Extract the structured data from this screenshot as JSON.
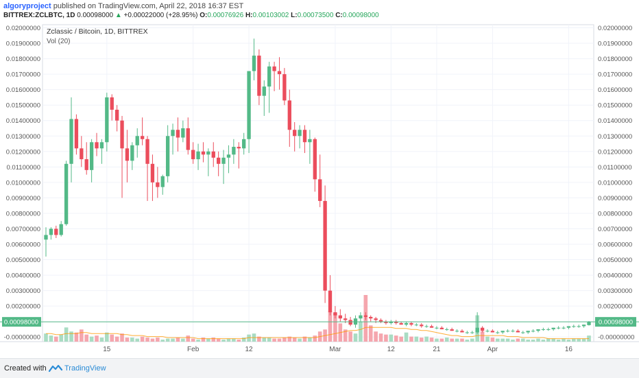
{
  "header": {
    "author": "algoryproject",
    "published_text": "published on TradingView.com, April 22, 2018 16:37 EST",
    "symbol": "BITTREX:ZCLBTC, 1D",
    "last": "0.00098000",
    "change_arrow": "▲",
    "change": "+0.00022000 (+28.95%)",
    "o_label": "O:",
    "o": "0.00076926",
    "h_label": "H:",
    "h": "0.00103002",
    "l_label": "L:",
    "l": "0.00073500",
    "c_label": "C:",
    "c": "0.00098000"
  },
  "legend": {
    "title": "Zclassic / Bitcoin, 1D, BITTREX",
    "vol": "Vol (20)"
  },
  "footer": {
    "created_with": "Created with",
    "brand": "TradingView",
    "logo_icon": "tradingview-logo-icon"
  },
  "colors": {
    "up": "#53b987",
    "down": "#eb4d5c",
    "up_vol": "#a9dcc3",
    "down_vol": "#f5a6ae",
    "ma": "#ff9800",
    "price_line": "#53b987",
    "grid": "#f0f3fa"
  },
  "chart_data": {
    "type": "candlestick",
    "title": "Zclassic / Bitcoin, 1D, BITTREX",
    "ylim": [
      -0.0003,
      0.0202
    ],
    "y_ticks": [
      "0.02000000",
      "0.01900000",
      "0.01800000",
      "0.01700000",
      "0.01600000",
      "0.01500000",
      "0.01400000",
      "0.01300000",
      "0.01200000",
      "0.01100000",
      "0.01000000",
      "0.00900000",
      "0.00800000",
      "0.00700000",
      "0.00600000",
      "0.00500000",
      "0.00400000",
      "0.00300000",
      "0.00200000",
      "0.00100000",
      "-0.00000000"
    ],
    "y_tick_values": [
      0.02,
      0.019,
      0.018,
      0.017,
      0.016,
      0.015,
      0.014,
      0.013,
      0.012,
      0.011,
      0.01,
      0.009,
      0.008,
      0.007,
      0.006,
      0.005,
      0.004,
      0.003,
      0.002,
      0.001,
      0.0
    ],
    "last_price_label": "0.00098000",
    "last_price": 0.00098,
    "x_ticks": [
      {
        "label": "15",
        "index": 12
      },
      {
        "label": "Feb",
        "index": 29
      },
      {
        "label": "12",
        "index": 40
      },
      {
        "label": "Mar",
        "index": 57
      },
      {
        "label": "12",
        "index": 68
      },
      {
        "label": "21",
        "index": 77
      },
      {
        "label": "Apr",
        "index": 88
      },
      {
        "label": "16",
        "index": 103
      }
    ],
    "grid": true,
    "ohlc": [
      [
        0.0063,
        0.0071,
        0.0052,
        0.0066
      ],
      [
        0.0066,
        0.0071,
        0.0063,
        0.007
      ],
      [
        0.007,
        0.0072,
        0.0064,
        0.0066
      ],
      [
        0.0066,
        0.0075,
        0.0065,
        0.0073
      ],
      [
        0.0073,
        0.0114,
        0.0072,
        0.0112
      ],
      [
        0.0112,
        0.0155,
        0.01,
        0.0141
      ],
      [
        0.0141,
        0.0144,
        0.0118,
        0.0122
      ],
      [
        0.0122,
        0.013,
        0.011,
        0.0115
      ],
      [
        0.0115,
        0.0126,
        0.0105,
        0.0108
      ],
      [
        0.0108,
        0.0128,
        0.01,
        0.0126
      ],
      [
        0.0126,
        0.0132,
        0.0117,
        0.0122
      ],
      [
        0.0122,
        0.0128,
        0.0112,
        0.0126
      ],
      [
        0.0126,
        0.0158,
        0.012,
        0.0155
      ],
      [
        0.0155,
        0.0157,
        0.014,
        0.0147
      ],
      [
        0.0147,
        0.015,
        0.0133,
        0.014
      ],
      [
        0.014,
        0.0143,
        0.009,
        0.0122
      ],
      [
        0.0122,
        0.0134,
        0.01,
        0.0114
      ],
      [
        0.0114,
        0.0126,
        0.0108,
        0.0124
      ],
      [
        0.0124,
        0.0135,
        0.0116,
        0.013
      ],
      [
        0.013,
        0.0142,
        0.0124,
        0.0128
      ],
      [
        0.0128,
        0.013,
        0.0088,
        0.0112
      ],
      [
        0.0112,
        0.0118,
        0.0088,
        0.01
      ],
      [
        0.01,
        0.011,
        0.009,
        0.0097
      ],
      [
        0.0097,
        0.0105,
        0.0092,
        0.0104
      ],
      [
        0.0104,
        0.0137,
        0.01,
        0.013
      ],
      [
        0.013,
        0.0138,
        0.0118,
        0.0134
      ],
      [
        0.0134,
        0.0142,
        0.012,
        0.0129
      ],
      [
        0.0129,
        0.014,
        0.0126,
        0.0135
      ],
      [
        0.0135,
        0.0142,
        0.0118,
        0.0121
      ],
      [
        0.0121,
        0.0126,
        0.0112,
        0.0115
      ],
      [
        0.0115,
        0.0125,
        0.0108,
        0.012
      ],
      [
        0.012,
        0.0126,
        0.0113,
        0.0118
      ],
      [
        0.0118,
        0.0122,
        0.0104,
        0.012
      ],
      [
        0.012,
        0.0126,
        0.011,
        0.0116
      ],
      [
        0.0116,
        0.012,
        0.0104,
        0.0112
      ],
      [
        0.0112,
        0.0121,
        0.0099,
        0.0116
      ],
      [
        0.0116,
        0.0124,
        0.0106,
        0.0118
      ],
      [
        0.0118,
        0.0128,
        0.0112,
        0.0123
      ],
      [
        0.0123,
        0.0126,
        0.0109,
        0.0122
      ],
      [
        0.0122,
        0.0132,
        0.0118,
        0.0128
      ],
      [
        0.0128,
        0.017,
        0.0119,
        0.0172
      ],
      [
        0.0172,
        0.0193,
        0.0166,
        0.0182
      ],
      [
        0.0182,
        0.0186,
        0.015,
        0.0156
      ],
      [
        0.0156,
        0.0166,
        0.0143,
        0.0162
      ],
      [
        0.0162,
        0.0178,
        0.0145,
        0.0175
      ],
      [
        0.0175,
        0.0178,
        0.0159,
        0.0172
      ],
      [
        0.0172,
        0.0181,
        0.016,
        0.017
      ],
      [
        0.017,
        0.0174,
        0.015,
        0.0153
      ],
      [
        0.0153,
        0.016,
        0.0123,
        0.0134
      ],
      [
        0.0134,
        0.0139,
        0.012,
        0.013
      ],
      [
        0.013,
        0.0137,
        0.0122,
        0.0134
      ],
      [
        0.0134,
        0.0137,
        0.0119,
        0.0126
      ],
      [
        0.0126,
        0.0134,
        0.0112,
        0.0128
      ],
      [
        0.0128,
        0.0129,
        0.0094,
        0.0102
      ],
      [
        0.0102,
        0.0118,
        0.0084,
        0.0088
      ],
      [
        0.0088,
        0.0098,
        0.0022,
        0.003
      ],
      [
        0.003,
        0.004,
        0.0014,
        0.0016
      ],
      [
        0.0016,
        0.002,
        0.0012,
        0.0014
      ],
      [
        0.0014,
        0.0018,
        0.001,
        0.0012
      ],
      [
        0.0012,
        0.0015,
        0.0009,
        0.0011
      ],
      [
        0.0011,
        0.0013,
        0.0007,
        0.0008
      ],
      [
        0.0008,
        0.0014,
        0.0006,
        0.0012
      ],
      [
        0.0012,
        0.0016,
        0.001,
        0.0014
      ],
      [
        0.0014,
        0.0016,
        0.0011,
        0.0013
      ],
      [
        0.0013,
        0.0014,
        0.001,
        0.0012
      ],
      [
        0.0012,
        0.0013,
        0.0009,
        0.0011
      ],
      [
        0.0011,
        0.0012,
        0.0009,
        0.001
      ],
      [
        0.001,
        0.0011,
        0.0008,
        0.0009
      ],
      [
        0.0009,
        0.0011,
        0.0008,
        0.001
      ],
      [
        0.001,
        0.0011,
        0.0008,
        0.0009
      ],
      [
        0.0009,
        0.001,
        0.0008,
        0.0008
      ],
      [
        0.0008,
        0.001,
        0.0007,
        0.0009
      ],
      [
        0.0009,
        0.001,
        0.0007,
        0.0008
      ],
      [
        0.0008,
        0.0009,
        0.0007,
        0.0008
      ],
      [
        0.0008,
        0.0009,
        0.0006,
        0.0007
      ],
      [
        0.0007,
        0.0008,
        0.0006,
        0.0007
      ],
      [
        0.0007,
        0.0008,
        0.0006,
        0.0006
      ],
      [
        0.0006,
        0.0007,
        0.0005,
        0.0006
      ],
      [
        0.0006,
        0.0007,
        0.0005,
        0.0005
      ],
      [
        0.0005,
        0.0006,
        0.0004,
        0.0005
      ],
      [
        0.0005,
        0.0006,
        0.0004,
        0.0004
      ],
      [
        0.0004,
        0.0005,
        0.0003,
        0.0004
      ],
      [
        0.0004,
        0.0005,
        0.0003,
        0.0003
      ],
      [
        0.0003,
        0.0004,
        0.0002,
        0.0003
      ],
      [
        0.0003,
        0.0004,
        0.0002,
        0.0003
      ],
      [
        0.0003,
        0.0016,
        0.0002,
        0.0006
      ],
      [
        0.0006,
        0.0007,
        0.0003,
        0.0004
      ],
      [
        0.0004,
        0.0005,
        0.0003,
        0.0004
      ],
      [
        0.0004,
        0.0005,
        0.0003,
        0.0003
      ],
      [
        0.0003,
        0.0004,
        0.0002,
        0.0003
      ],
      [
        0.0003,
        0.0004,
        0.0002,
        0.0004
      ],
      [
        0.0004,
        0.0005,
        0.0003,
        0.0004
      ],
      [
        0.0004,
        0.0005,
        0.0003,
        0.0004
      ],
      [
        0.0004,
        0.0005,
        0.0003,
        0.0003
      ],
      [
        0.0003,
        0.0004,
        0.0002,
        0.0003
      ],
      [
        0.0003,
        0.0004,
        0.0002,
        0.0004
      ],
      [
        0.0004,
        0.0005,
        0.0003,
        0.0004
      ],
      [
        0.0004,
        0.0005,
        0.0003,
        0.0005
      ],
      [
        0.0005,
        0.0006,
        0.0004,
        0.0005
      ],
      [
        0.0005,
        0.0006,
        0.0004,
        0.0005
      ],
      [
        0.0005,
        0.0006,
        0.0004,
        0.0006
      ],
      [
        0.0006,
        0.0007,
        0.0005,
        0.0006
      ],
      [
        0.0006,
        0.0007,
        0.0005,
        0.0006
      ],
      [
        0.0006,
        0.0007,
        0.0005,
        0.0007
      ],
      [
        0.0007,
        0.0008,
        0.0006,
        0.0007
      ],
      [
        0.0007,
        0.0008,
        0.0006,
        0.0007
      ],
      [
        0.0007,
        0.0008,
        0.0006,
        0.0008
      ],
      [
        0.0007692,
        0.00103,
        0.000735,
        0.00098
      ]
    ],
    "volume": [
      8,
      6,
      5,
      7,
      14,
      10,
      9,
      12,
      7,
      5,
      6,
      4,
      9,
      7,
      5,
      8,
      4,
      4,
      3,
      5,
      4,
      3,
      4,
      2,
      3,
      3,
      4,
      3,
      6,
      3,
      2,
      4,
      3,
      4,
      3,
      2,
      3,
      3,
      2,
      4,
      7,
      8,
      5,
      4,
      4,
      3,
      3,
      4,
      5,
      4,
      3,
      5,
      4,
      6,
      10,
      12,
      30,
      28,
      18,
      12,
      10,
      8,
      20,
      46,
      16,
      10,
      8,
      7,
      7,
      6,
      5,
      9,
      5,
      5,
      4,
      5,
      4,
      3,
      3,
      4,
      3,
      3,
      3,
      2,
      3,
      26,
      10,
      5,
      4,
      3,
      3,
      3,
      2,
      3,
      3,
      2,
      2,
      3,
      2,
      3,
      3,
      2,
      3,
      2,
      3,
      3,
      3,
      6
    ],
    "vol_ma": [
      8,
      8,
      7,
      7,
      8,
      8,
      8,
      9,
      9,
      8,
      8,
      8,
      8,
      8,
      8,
      7,
      7,
      6,
      6,
      6,
      5,
      5,
      5,
      5,
      4,
      4,
      4,
      4,
      4,
      4,
      3,
      3,
      3,
      3,
      3,
      3,
      3,
      3,
      3,
      3,
      4,
      4,
      4,
      4,
      4,
      4,
      4,
      4,
      4,
      4,
      4,
      4,
      4,
      4,
      5,
      6,
      7,
      8,
      9,
      10,
      11,
      11,
      12,
      14,
      14,
      14,
      14,
      14,
      14,
      13,
      13,
      13,
      12,
      12,
      11,
      11,
      10,
      9,
      8,
      7,
      6,
      6,
      5,
      5,
      5,
      6,
      6,
      6,
      6,
      6,
      6,
      5,
      5,
      5,
      4,
      4,
      4,
      4,
      4,
      3,
      3,
      3,
      3,
      3,
      3,
      3,
      3,
      3
    ]
  }
}
